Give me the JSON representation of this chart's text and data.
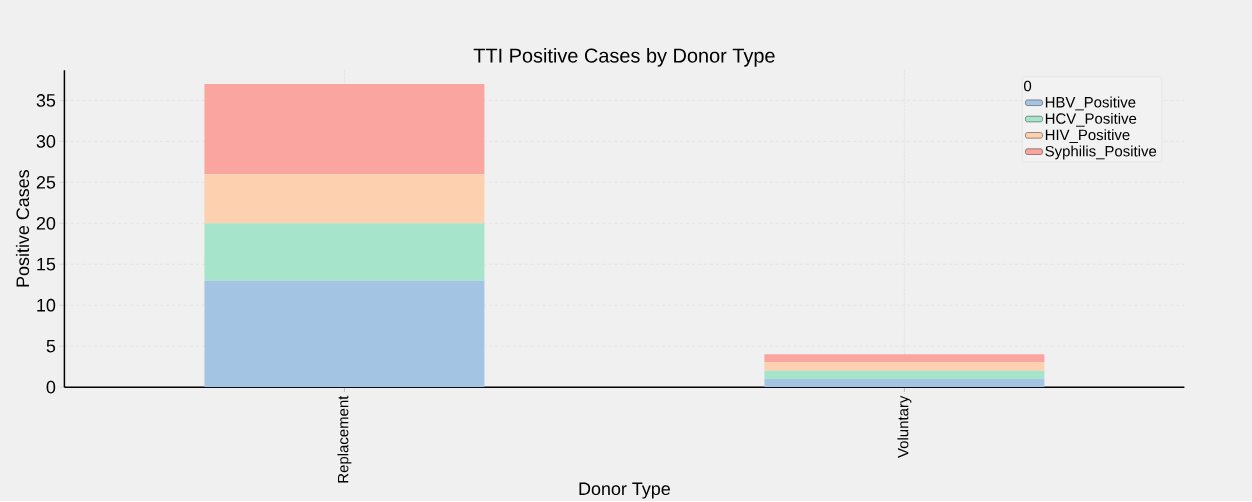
{
  "chart_data": {
    "type": "bar",
    "title": "TTI Positive Cases by Donor Type",
    "xlabel": "Donor Type",
    "ylabel": "Positive Cases",
    "legend_title": "0",
    "categories": [
      "Replacement",
      "Voluntary"
    ],
    "series": [
      {
        "name": "HBV_Positive",
        "color": "#a4c4e4",
        "values": [
          13,
          1
        ]
      },
      {
        "name": "HCV_Positive",
        "color": "#a6e4cc",
        "values": [
          7,
          1
        ]
      },
      {
        "name": "HIV_Positive",
        "color": "#fdd0b0",
        "values": [
          6,
          1
        ]
      },
      {
        "name": "Syphilis_Positive",
        "color": "#fba5a0",
        "values": [
          11,
          1
        ]
      }
    ],
    "stacked": true,
    "ylim": [
      0,
      38.7
    ],
    "yticks": [
      0,
      5,
      10,
      15,
      20,
      25,
      30,
      35
    ],
    "grid": true,
    "legend": "top right"
  }
}
